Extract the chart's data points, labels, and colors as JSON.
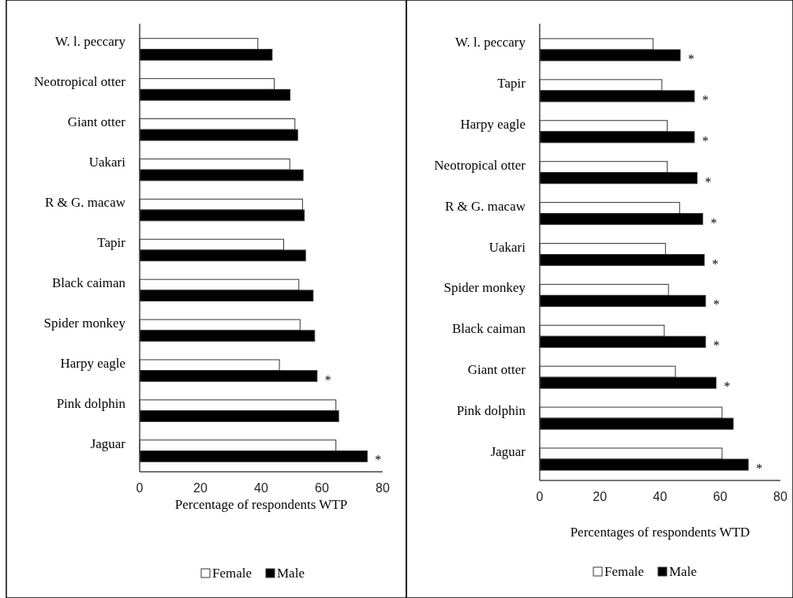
{
  "chart_data": [
    {
      "type": "bar",
      "orientation": "horizontal",
      "categories": [
        "W. l. peccary",
        "Neotropical otter",
        "Giant otter",
        "Uakari",
        "R & G. macaw",
        "Tapir",
        "Black caiman",
        "Spider monkey",
        "Harpy eagle",
        "Pink dolphin",
        "Jaguar"
      ],
      "series": [
        {
          "name": "Female",
          "color": "#ffffff",
          "values": [
            38.9,
            44.3,
            51.1,
            49.4,
            53.6,
            47.4,
            52.4,
            52.8,
            46.0,
            64.6,
            64.6
          ]
        },
        {
          "name": "Male",
          "color": "#000000",
          "values": [
            43.6,
            49.5,
            52.0,
            53.8,
            54.2,
            54.6,
            57.1,
            57.6,
            58.4,
            65.5,
            74.9
          ]
        }
      ],
      "xlim": [
        0,
        80
      ],
      "xticks": [
        0,
        20,
        40,
        60,
        80
      ],
      "xlabel": "Percentage of respondents WTP",
      "legend": "bottom",
      "annotations": [
        {
          "text": "*",
          "x": 58.4,
          "y": "Harpy eagle"
        },
        {
          "text": "*",
          "x": 74.9,
          "y": "Jaguar"
        }
      ]
    },
    {
      "type": "bar",
      "orientation": "horizontal",
      "categories": [
        "W. l. peccary",
        "Tapir",
        "Harpy eagle",
        "Neotropical otter",
        "R & G. macaw",
        "Uakari",
        "Spider monkey",
        "Black caiman",
        "Giant otter",
        "Pink dolphin",
        "Jaguar"
      ],
      "series": [
        {
          "name": "Female",
          "color": "#ffffff",
          "values": [
            37.7,
            40.6,
            42.4,
            42.4,
            46.5,
            41.8,
            42.8,
            41.4,
            45.1,
            60.6,
            60.6
          ]
        },
        {
          "name": "Male",
          "color": "#000000",
          "values": [
            46.7,
            51.4,
            51.4,
            52.3,
            54.2,
            54.7,
            55.1,
            55.1,
            58.6,
            64.3,
            69.3
          ]
        }
      ],
      "xlim": [
        0,
        80
      ],
      "xticks": [
        0,
        20,
        40,
        60,
        80
      ],
      "xlabel": "Percentages of respondents WTD",
      "legend": "bottom",
      "annotations": [
        {
          "text": "*",
          "x": 46.7,
          "y": "W. l. peccary"
        },
        {
          "text": "*",
          "x": 51.4,
          "y": "Tapir"
        },
        {
          "text": "*",
          "x": 51.4,
          "y": "Harpy eagle"
        },
        {
          "text": "*",
          "x": 52.3,
          "y": "Neotropical otter"
        },
        {
          "text": "*",
          "x": 54.2,
          "y": "R & G. macaw"
        },
        {
          "text": "*",
          "x": 54.7,
          "y": "Uakari"
        },
        {
          "text": "*",
          "x": 55.1,
          "y": "Spider monkey"
        },
        {
          "text": "*",
          "x": 55.1,
          "y": "Black caiman"
        },
        {
          "text": "*",
          "x": 58.6,
          "y": "Giant otter"
        },
        {
          "text": "*",
          "x": 69.3,
          "y": "Jaguar"
        }
      ]
    }
  ]
}
